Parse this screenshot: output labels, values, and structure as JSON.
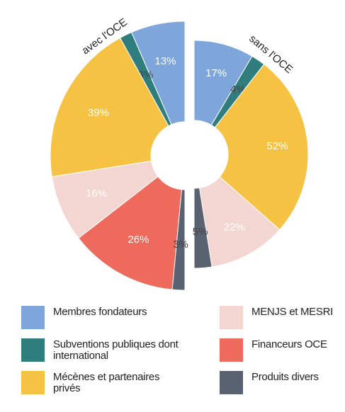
{
  "chart_data": {
    "type": "split-donut",
    "categories": [
      "Membres fondateurs",
      "Subventions publiques dont international",
      "Mécènes et partenaires privés",
      "MENJS et MESRI",
      "Financeurs OCE",
      "Produits divers"
    ],
    "colors": [
      "#7ea6da",
      "#2f7d7c",
      "#f5c243",
      "#f3d5d1",
      "#ee6a5d",
      "#5a6171"
    ],
    "series": [
      {
        "name": "avec l'OCE",
        "values": [
          13,
          3,
          39,
          16,
          26,
          3
        ],
        "value_labels": [
          "13%",
          "3%",
          "39%",
          "16%",
          "26%",
          "3%"
        ]
      },
      {
        "name": "sans l'OCE",
        "values": [
          17,
          4,
          52,
          22,
          null,
          5
        ],
        "value_labels": [
          "17%",
          "4%",
          "52%",
          "22%",
          null,
          "5%"
        ]
      }
    ]
  }
}
